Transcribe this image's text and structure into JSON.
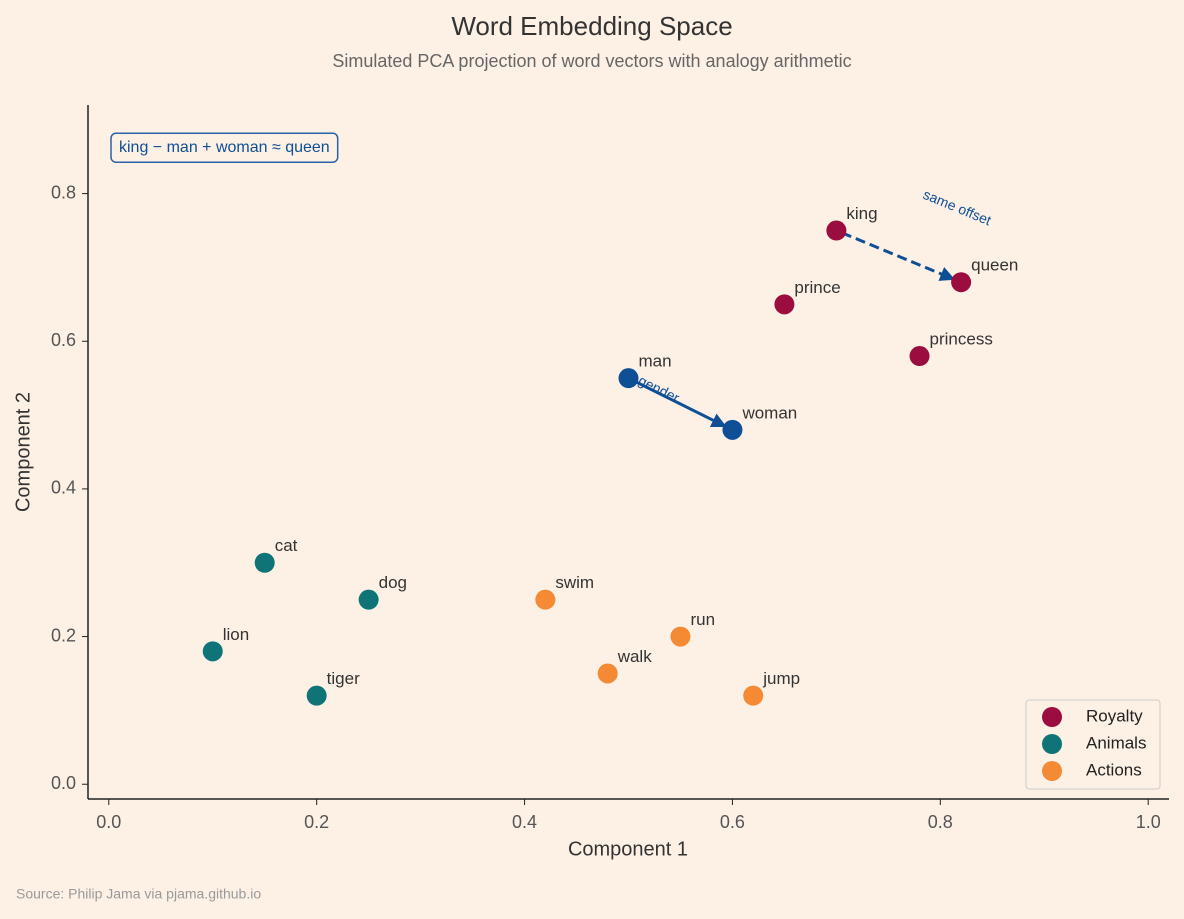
{
  "chart_data": {
    "type": "scatter",
    "title": "Word Embedding Space",
    "subtitle": "Simulated PCA projection of word vectors with analogy arithmetic",
    "x_label": "Component 1",
    "y_label": "Component 2",
    "source": "Source: Philip Jama via pjama.github.io",
    "xlim": [
      -0.02,
      1.02
    ],
    "ylim": [
      -0.02,
      0.92
    ],
    "xticks": [
      {
        "value": 0,
        "label": "0.0"
      },
      {
        "value": 0.2,
        "label": "0.2"
      },
      {
        "value": 0.4,
        "label": "0.4"
      },
      {
        "value": 0.6,
        "label": "0.6"
      },
      {
        "value": 0.8,
        "label": "0.8"
      },
      {
        "value": 1.0,
        "label": "1.0"
      }
    ],
    "yticks": [
      {
        "value": 0,
        "label": "0.0"
      },
      {
        "value": 0.2,
        "label": "0.2"
      },
      {
        "value": 0.4,
        "label": "0.4"
      },
      {
        "value": 0.6,
        "label": "0.6"
      },
      {
        "value": 0.8,
        "label": "0.8"
      }
    ],
    "legend": "lower right",
    "series": [
      {
        "name": "Royalty",
        "color": "#9b0d3e",
        "labels": [
          "king",
          "queen",
          "prince",
          "princess"
        ],
        "x": [
          0.7,
          0.82,
          0.65,
          0.78
        ],
        "values": [
          0.75,
          0.68,
          0.65,
          0.58
        ]
      },
      {
        "name": "Animals",
        "color": "#0e7478",
        "labels": [
          "cat",
          "dog",
          "lion",
          "tiger"
        ],
        "x": [
          0.15,
          0.25,
          0.1,
          0.2
        ],
        "values": [
          0.3,
          0.25,
          0.18,
          0.12
        ]
      },
      {
        "name": "Actions",
        "color": "#f58a35",
        "labels": [
          "swim",
          "run",
          "walk",
          "jump"
        ],
        "x": [
          0.42,
          0.55,
          0.48,
          0.62
        ],
        "values": [
          0.25,
          0.2,
          0.15,
          0.12
        ]
      },
      {
        "color": "#0e4f96",
        "labels": [
          "man",
          "woman"
        ],
        "x": [
          0.5,
          0.6
        ],
        "values": [
          0.55,
          0.48
        ]
      }
    ],
    "annotations": {
      "box": "king − man + woman ≈ queen",
      "arrows": [
        {
          "label": "gender",
          "from": [
            0.5,
            0.55
          ],
          "to": [
            0.6,
            0.48
          ],
          "style": "solid",
          "color": "#0e4f96"
        },
        {
          "label": "same offset",
          "from": [
            0.7,
            0.75
          ],
          "to": [
            0.82,
            0.68
          ],
          "style": "dashed",
          "color": "#0e4f96"
        }
      ]
    }
  }
}
